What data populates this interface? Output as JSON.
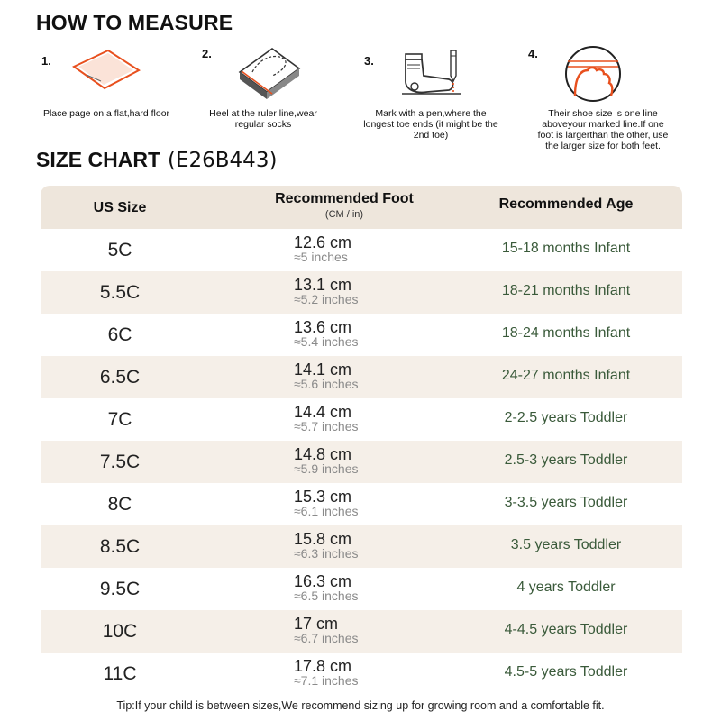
{
  "how_to_measure": {
    "title": "HOW TO MEASURE",
    "steps": [
      {
        "num": "1.",
        "caption": "Place page on a flat,hard floor",
        "icon": "paper-sheet-icon"
      },
      {
        "num": "2.",
        "caption": "Heel at the ruler line,wear regular socks",
        "icon": "heel-on-line-icon"
      },
      {
        "num": "3.",
        "caption": "Mark with a pen,where the longest toe ends (it might be the 2nd toe)",
        "icon": "sock-and-pen-icon"
      },
      {
        "num": "4.",
        "caption": "Their shoe size is one line aboveyour marked line.If one foot is largerthan the other, use the larger size for both feet.",
        "icon": "toe-over-line-icon"
      }
    ]
  },
  "size_chart": {
    "title": "SIZE CHART",
    "code": "(E26B443)",
    "headers": {
      "us_size": "US Size",
      "foot": "Recommended Foot",
      "foot_unit": "(CM / in)",
      "age": "Recommended Age"
    },
    "rows": [
      {
        "size": "5C",
        "cm": "12.6 cm",
        "inches": "≈5 inches",
        "age": "15-18 months Infant"
      },
      {
        "size": "5.5C",
        "cm": "13.1 cm",
        "inches": "≈5.2 inches",
        "age": "18-21 months Infant"
      },
      {
        "size": "6C",
        "cm": "13.6 cm",
        "inches": "≈5.4 inches",
        "age": "18-24 months Infant"
      },
      {
        "size": "6.5C",
        "cm": "14.1 cm",
        "inches": "≈5.6 inches",
        "age": "24-27 months Infant"
      },
      {
        "size": "7C",
        "cm": "14.4 cm",
        "inches": "≈5.7 inches",
        "age": "2-2.5 years Toddler"
      },
      {
        "size": "7.5C",
        "cm": "14.8 cm",
        "inches": "≈5.9 inches",
        "age": "2.5-3 years Toddler"
      },
      {
        "size": "8C",
        "cm": "15.3 cm",
        "inches": "≈6.1 inches",
        "age": "3-3.5 years Toddler"
      },
      {
        "size": "8.5C",
        "cm": "15.8 cm",
        "inches": "≈6.3 inches",
        "age": "3.5 years Toddler"
      },
      {
        "size": "9.5C",
        "cm": "16.3 cm",
        "inches": "≈6.5 inches",
        "age": "4 years Toddler"
      },
      {
        "size": "10C",
        "cm": "17 cm",
        "inches": "≈6.7 inches",
        "age": "4-4.5 years Toddler"
      },
      {
        "size": "11C",
        "cm": "17.8 cm",
        "inches": "≈7.1 inches",
        "age": "4.5-5 years Toddler"
      }
    ]
  },
  "tip": "Tip:If your child is between sizes,We recommend sizing up for growing room and a comfortable fit.",
  "colors": {
    "accent": "#e8501e",
    "header_bg": "#eee6dc",
    "row_alt": "#f5efe8",
    "age_text": "#3a5a3a"
  }
}
